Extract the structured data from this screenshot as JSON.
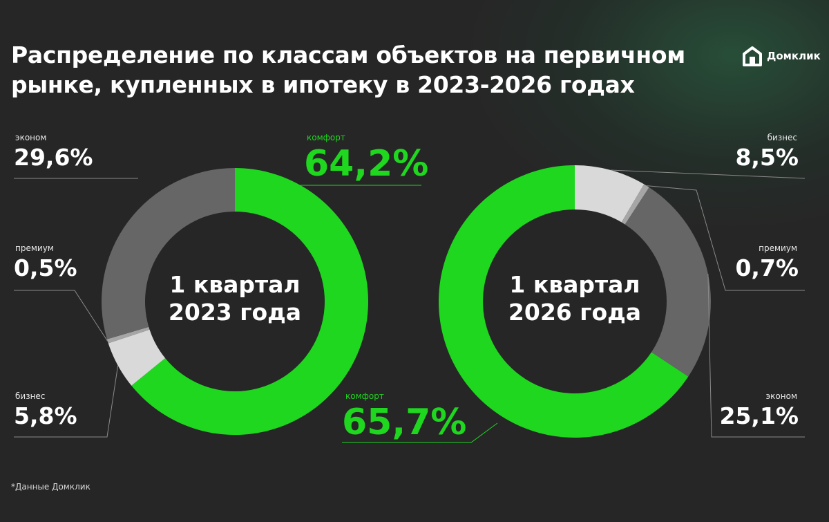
{
  "title": "Распределение по классам объектов на первичном рынке, купленных в ипотеку в 2023-2026 годах",
  "logo": {
    "text": "Домклик",
    "icon": "house-logo-icon"
  },
  "footnote": "*Данные Домклик",
  "colors": {
    "background": "#262626",
    "comfort": "#1fd71f",
    "economy": "#666666",
    "business": "#d9d9d9",
    "premium": "#a6a6a6",
    "line": "#8a8a8a"
  },
  "chart_data": [
    {
      "type": "pie",
      "title": "1 квартал 2023 года",
      "center_label_lines": [
        "1 квартал",
        "2023 года"
      ],
      "categories": [
        "комфорт",
        "бизнес",
        "премиум",
        "эконом"
      ],
      "values": [
        64.2,
        5.8,
        0.5,
        29.6
      ],
      "value_labels": [
        "64,2%",
        "5,8%",
        "0,5%",
        "29,6%"
      ],
      "colors": [
        "#1fd71f",
        "#d9d9d9",
        "#a6a6a6",
        "#666666"
      ]
    },
    {
      "type": "pie",
      "title": "1 квартал 2026 года",
      "center_label_lines": [
        "1 квартал",
        "2026 года"
      ],
      "categories": [
        "бизнес",
        "премиум",
        "эконом",
        "комфорт"
      ],
      "values": [
        8.5,
        0.7,
        25.1,
        65.7
      ],
      "value_labels": [
        "8,5%",
        "0,7%",
        "25,1%",
        "65,7%"
      ],
      "colors": [
        "#d9d9d9",
        "#a6a6a6",
        "#666666",
        "#1fd71f"
      ]
    }
  ]
}
